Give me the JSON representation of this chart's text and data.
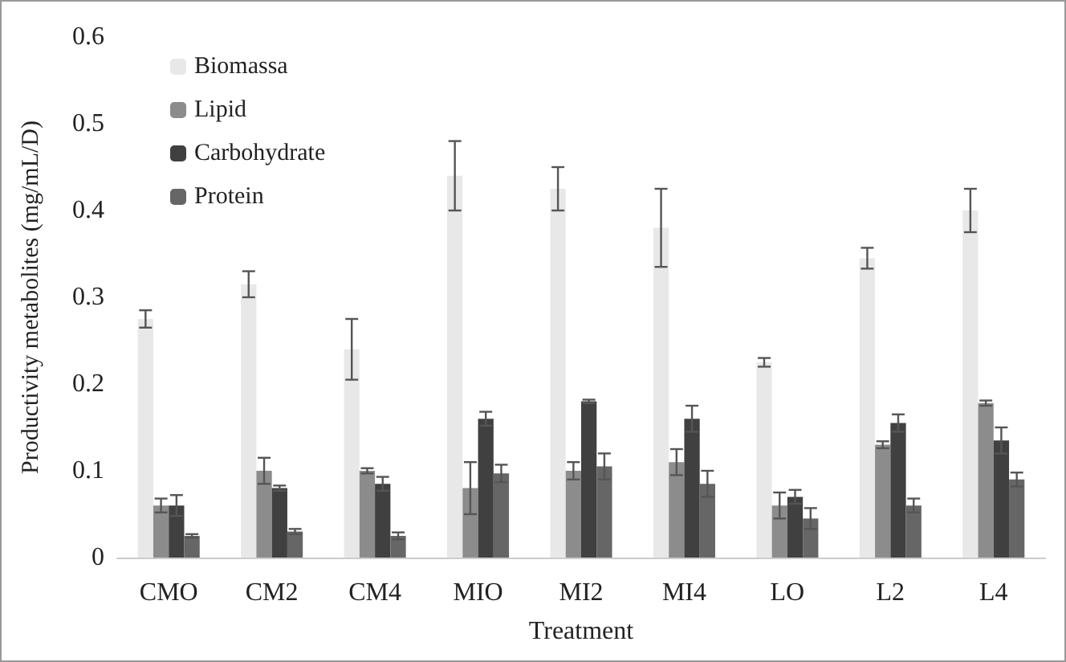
{
  "chart_data": {
    "type": "bar",
    "xlabel": "Treatment",
    "ylabel": "Productivity metabolites (mg/mL/D)",
    "categories": [
      "CMO",
      "CM2",
      "CM4",
      "MIO",
      "MI2",
      "MI4",
      "LO",
      "L2",
      "L4"
    ],
    "series": [
      {
        "name": "Biomassa",
        "color": "#e8e8e8",
        "values": [
          0.275,
          0.315,
          0.24,
          0.44,
          0.425,
          0.38,
          0.225,
          0.345,
          0.4
        ],
        "errors": [
          0.01,
          0.015,
          0.035,
          0.04,
          0.025,
          0.045,
          0.005,
          0.012,
          0.025
        ]
      },
      {
        "name": "Lipid",
        "color": "#8c8c8c",
        "values": [
          0.06,
          0.1,
          0.1,
          0.08,
          0.1,
          0.11,
          0.06,
          0.13,
          0.178
        ],
        "errors": [
          0.008,
          0.015,
          0.003,
          0.03,
          0.01,
          0.015,
          0.015,
          0.004,
          0.003
        ]
      },
      {
        "name": "Carbohydrate",
        "color": "#404040",
        "values": [
          0.06,
          0.08,
          0.085,
          0.16,
          0.18,
          0.16,
          0.07,
          0.155,
          0.135
        ],
        "errors": [
          0.012,
          0.003,
          0.008,
          0.008,
          0.002,
          0.015,
          0.008,
          0.01,
          0.015
        ]
      },
      {
        "name": "Protein",
        "color": "#666666",
        "values": [
          0.025,
          0.03,
          0.025,
          0.097,
          0.105,
          0.085,
          0.045,
          0.06,
          0.09
        ],
        "errors": [
          0.002,
          0.003,
          0.004,
          0.01,
          0.015,
          0.015,
          0.012,
          0.008,
          0.008
        ]
      }
    ],
    "ylim": [
      0,
      0.6
    ],
    "yticks": [
      0,
      0.1,
      0.2,
      0.3,
      0.4,
      0.5,
      0.6
    ],
    "grid": false,
    "legend": "top left"
  }
}
